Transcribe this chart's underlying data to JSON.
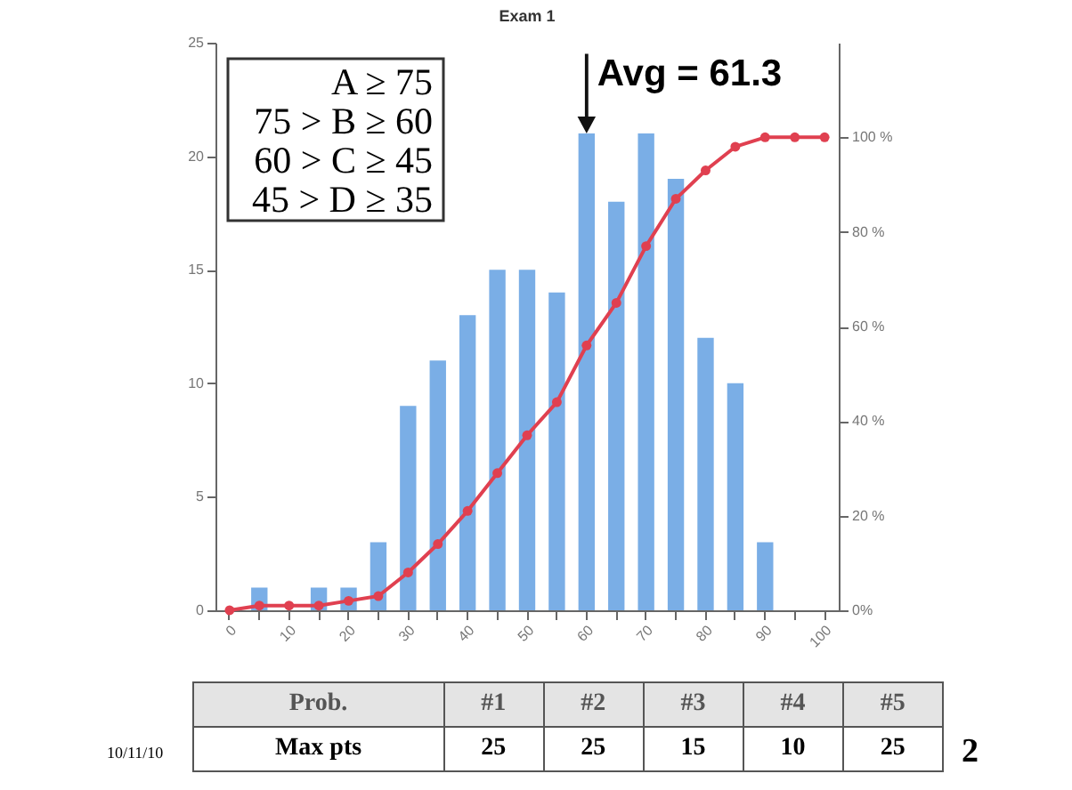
{
  "chart_data": {
    "type": "bar",
    "title": "Exam 1",
    "categories": [
      "0",
      null,
      "10",
      null,
      "20",
      null,
      "30",
      null,
      "40",
      null,
      "50",
      null,
      "60",
      null,
      "70",
      null,
      "80",
      null,
      "90",
      null,
      "100"
    ],
    "series": [
      {
        "color": "#7aaee6",
        "values": [
          0,
          1,
          0,
          1,
          1,
          3,
          9,
          11,
          13,
          15,
          15,
          14,
          21,
          18,
          21,
          19,
          12,
          10,
          3,
          0,
          0
        ]
      },
      {
        "type": "line",
        "axis": "y2",
        "color": "#e04050",
        "values": [
          0,
          1,
          1,
          1,
          2,
          3,
          8,
          14,
          21,
          29,
          37,
          44,
          56,
          65,
          77,
          87,
          93,
          98,
          100,
          100,
          100
        ]
      }
    ],
    "ylim": [
      0,
      25
    ],
    "yticks": [
      0,
      5,
      10,
      15,
      20,
      25
    ],
    "y2lim": [
      0,
      120
    ],
    "y2ticks": [
      {
        "value": 0,
        "label": "0%"
      },
      {
        "value": 20,
        "label": "20 %"
      },
      {
        "value": 40,
        "label": "40 %"
      },
      {
        "value": 60,
        "label": "60 %"
      },
      {
        "value": 80,
        "label": "80 %"
      },
      {
        "value": 100,
        "label": "100 %"
      }
    ],
    "marker": "circle",
    "annotations": [
      {
        "text": "Avg = 61.3",
        "x": "60",
        "y": 21
      },
      "A ≥ 75",
      "75 > B ≥ 60",
      "60 > C ≥ 45",
      "45 > D ≥ 35",
      "Prob.",
      "#1",
      "#2",
      "#3",
      "#4",
      "#5",
      "Max pts",
      "25",
      "25",
      "15",
      "10",
      "25",
      "10/11/10",
      "2"
    ]
  }
}
